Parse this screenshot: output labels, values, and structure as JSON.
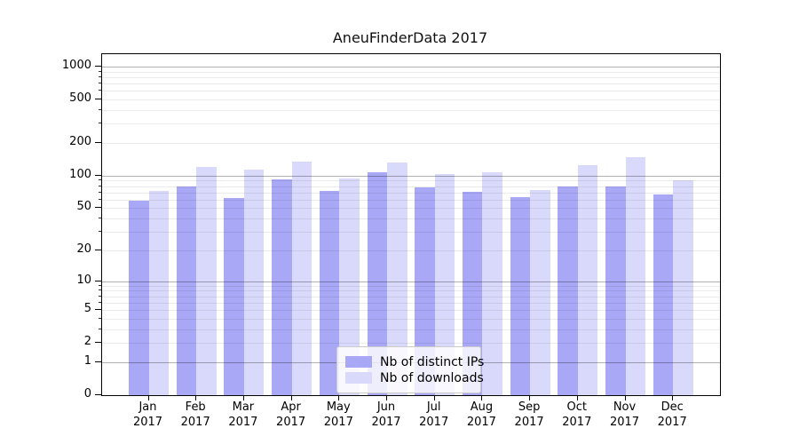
{
  "chart_data": {
    "type": "bar",
    "title": "AneuFinderData 2017",
    "categories": [
      {
        "month": "Jan",
        "year": "2017"
      },
      {
        "month": "Feb",
        "year": "2017"
      },
      {
        "month": "Mar",
        "year": "2017"
      },
      {
        "month": "Apr",
        "year": "2017"
      },
      {
        "month": "May",
        "year": "2017"
      },
      {
        "month": "Jun",
        "year": "2017"
      },
      {
        "month": "Jul",
        "year": "2017"
      },
      {
        "month": "Aug",
        "year": "2017"
      },
      {
        "month": "Sep",
        "year": "2017"
      },
      {
        "month": "Oct",
        "year": "2017"
      },
      {
        "month": "Nov",
        "year": "2017"
      },
      {
        "month": "Dec",
        "year": "2017"
      }
    ],
    "series": [
      {
        "name": "Nb of distinct IPs",
        "color": "#a8a8f6",
        "values": [
          59,
          80,
          62,
          93,
          72,
          107,
          78,
          71,
          63,
          80,
          80,
          67
        ]
      },
      {
        "name": "Nb of downloads",
        "color": "#d9d9fb",
        "values": [
          72,
          120,
          114,
          136,
          95,
          132,
          103,
          107,
          73,
          125,
          148,
          91
        ]
      }
    ],
    "yticks": [
      0,
      1,
      2,
      5,
      10,
      20,
      50,
      100,
      200,
      500,
      1000
    ],
    "ylim": [
      0,
      1000
    ],
    "yscale": "log10(value+1)",
    "xlabel": "",
    "ylabel": "",
    "grid": "horizontal; faint minor log lines, darker lines at 1, 10, 100, 1000; drawn over bars",
    "legend_position": "inside plot, lower center"
  }
}
